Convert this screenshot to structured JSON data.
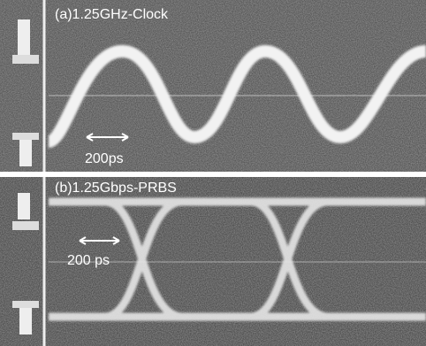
{
  "panels": [
    {
      "label": "(a)1.25GHz-Clock",
      "scale": "200ps"
    },
    {
      "label": "(b)1.25Gbps-PRBS",
      "scale": "200 ps"
    }
  ]
}
